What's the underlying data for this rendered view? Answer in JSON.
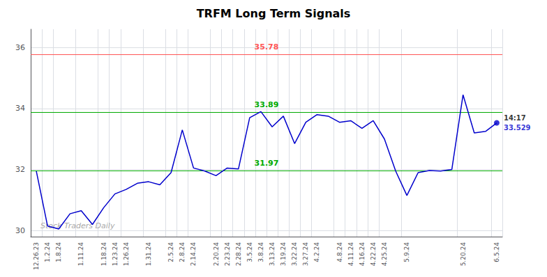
{
  "chart_data": {
    "type": "line",
    "title": "TRFM Long Term Signals",
    "categories": [
      "12.26.23",
      "1.2.24",
      "1.8.24",
      null,
      "1.11.24",
      null,
      "1.18.24",
      "1.23.24",
      "1.26.24",
      null,
      "1.31.24",
      null,
      "2.5.24",
      "2.8.24",
      "2.14.24",
      null,
      "2.20.24",
      "2.23.24",
      "2.28.24",
      "3.5.24",
      "3.8.24",
      "3.13.24",
      "3.19.24",
      "3.22.24",
      "3.27.24",
      "4.2.24",
      null,
      "4.8.24",
      "4.11.24",
      "4.16.24",
      "4.22.24",
      "4.25.24",
      null,
      "5.9.24",
      null,
      null,
      null,
      null,
      "5.20.24",
      null,
      null,
      "6.5.24"
    ],
    "values": [
      31.95,
      30.15,
      30.05,
      30.55,
      30.65,
      30.2,
      30.75,
      31.2,
      31.35,
      31.55,
      31.6,
      31.5,
      31.9,
      33.3,
      32.05,
      31.95,
      31.8,
      32.05,
      32.02,
      33.7,
      33.9,
      33.4,
      33.75,
      32.85,
      33.55,
      33.8,
      33.75,
      33.55,
      33.6,
      33.35,
      33.6,
      33.0,
      31.95,
      31.15,
      31.9,
      31.97,
      31.95,
      32.0,
      34.45,
      33.2,
      33.25,
      33.529
    ],
    "color": "#0000cc",
    "ylim": [
      29.8,
      36.6
    ],
    "yticks": [
      30,
      32,
      34,
      36
    ],
    "grid": true,
    "hlines": [
      {
        "value": 35.78,
        "label": "35.78",
        "color": "#ff5555"
      },
      {
        "value": 33.89,
        "label": "33.89",
        "color": "#00aa00"
      },
      {
        "value": 31.97,
        "label": "31.97",
        "color": "#00aa00"
      }
    ],
    "last_point": {
      "label": "14:17",
      "value": 33.529,
      "color": "#0000cc"
    },
    "watermark": "Stock Traders Daily"
  }
}
